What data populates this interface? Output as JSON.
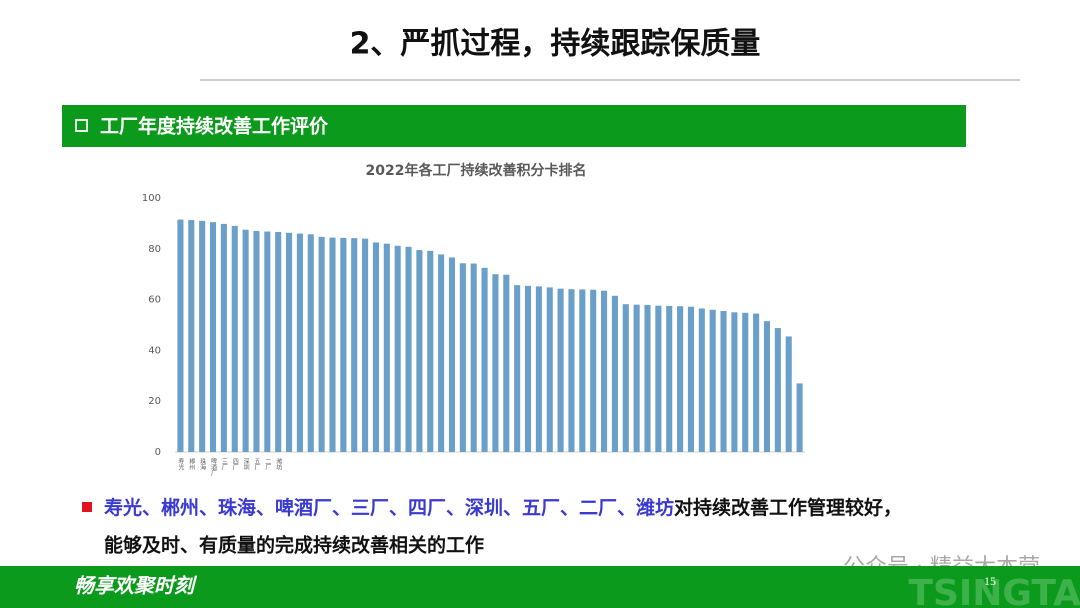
{
  "header": {
    "title": "2、严抓过程，持续跟踪保质量",
    "section": "工厂年度持续改善工作评价"
  },
  "chart_data": {
    "type": "bar",
    "title": "2022年各工厂持续改善积分卡排名",
    "categories": [
      "寿光",
      "郴州",
      "珠海",
      "啤酒厂",
      "三厂",
      "四厂",
      "深圳",
      "五厂",
      "二厂",
      "潍坊",
      null,
      null,
      null,
      null,
      null,
      null,
      null,
      null,
      null,
      null,
      null,
      null,
      null,
      null,
      null,
      null,
      null,
      null,
      null,
      null,
      null,
      null,
      null,
      null,
      null,
      null,
      null,
      null,
      null,
      null,
      null,
      null,
      null,
      null,
      null,
      null,
      null,
      null,
      null,
      null,
      null,
      null,
      null,
      null,
      null,
      null,
      null,
      null
    ],
    "values": [
      91.5,
      91.3,
      91,
      90.5,
      89.8,
      89,
      87.5,
      87,
      86.8,
      86.6,
      86.3,
      86,
      85.7,
      84.7,
      84.4,
      84.3,
      84.2,
      84,
      82.5,
      82,
      81.2,
      80.8,
      79.5,
      79.2,
      77.8,
      76.6,
      74.3,
      74.2,
      72.5,
      70,
      69.8,
      65.7,
      65.4,
      65.2,
      64.8,
      64.3,
      64.1,
      64,
      63.9,
      63.5,
      61.5,
      58.2,
      58,
      57.9,
      57.6,
      57.5,
      57.4,
      57.2,
      56.5,
      56,
      55.5,
      55,
      54.8,
      54.5,
      51.5,
      48.8,
      45.5,
      27
    ],
    "color": "#6a9fc9",
    "ylim": [
      0,
      100
    ],
    "yticks": [
      0,
      20,
      40,
      60,
      80,
      100
    ],
    "grid": false
  },
  "bullet": {
    "highlight": "寿光、郴州、珠海、啤酒厂、三厂、四厂、深圳、五厂、二厂、潍坊",
    "text": "对持续改善工作管理较好，",
    "line2": "能够及时、有质量的完成持续改善相关的工作"
  },
  "footer": {
    "slogan": "畅享欢聚时刻",
    "page": "15",
    "brand": "TSINGTAO",
    "watermark": "公众号 · 精益大本营"
  }
}
